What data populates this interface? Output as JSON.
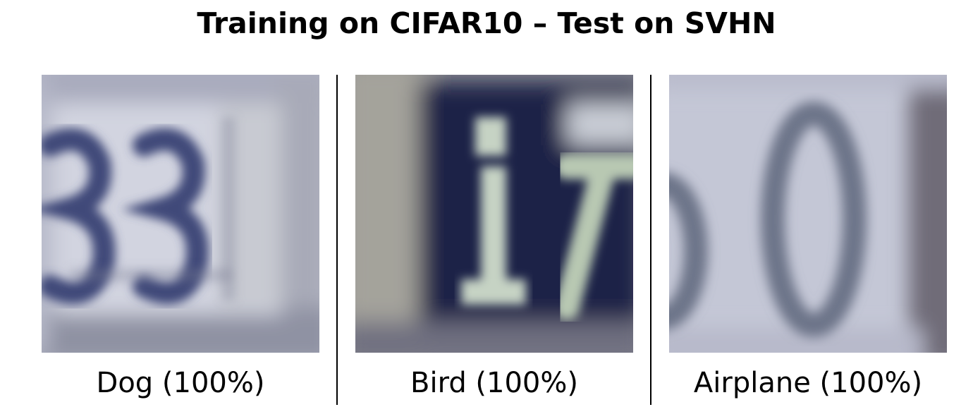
{
  "figure": {
    "title": "Training on CIFAR10 – Test on SVHN",
    "panels": [
      {
        "caption": "Dog (100%)",
        "image_digits": "33",
        "background_color": "#bfc1d0",
        "digit_color": "#3e4575"
      },
      {
        "caption": "Bird (100%)",
        "image_digits": "17",
        "background_color": "#23264a",
        "digit_color": "#c9d6c8"
      },
      {
        "caption": "Airplane (100%)",
        "image_digits": "60",
        "background_color": "#c3c6d6",
        "digit_color": "#6a7184"
      }
    ]
  }
}
